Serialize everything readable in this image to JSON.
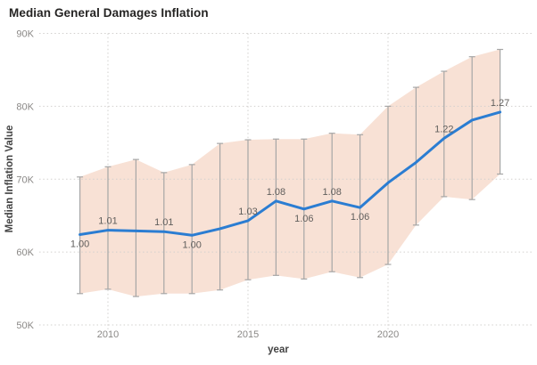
{
  "header": {
    "title": "Median General Damages Inflation"
  },
  "chart_data": {
    "type": "line",
    "title": "Median General Damages Inflation",
    "xlabel": "year",
    "ylabel": "Median Inflation Value",
    "y_unit": "K",
    "x": [
      2009,
      2010,
      2011,
      2012,
      2013,
      2014,
      2015,
      2016,
      2017,
      2018,
      2019,
      2020,
      2021,
      2022,
      2023,
      2024
    ],
    "series": [
      {
        "name": "Median Inflation Value",
        "values": [
          62.4,
          63.0,
          62.9,
          62.8,
          62.3,
          63.2,
          64.3,
          67.0,
          65.9,
          67.0,
          66.1,
          69.5,
          72.3,
          75.6,
          78.1,
          79.2
        ]
      }
    ],
    "band": {
      "upper": [
        70.3,
        71.7,
        72.7,
        70.9,
        72.0,
        74.9,
        75.4,
        75.5,
        75.5,
        76.3,
        76.1,
        80.0,
        82.6,
        84.8,
        86.8,
        87.8
      ],
      "lower": [
        54.3,
        54.9,
        53.9,
        54.3,
        54.3,
        54.8,
        56.2,
        56.8,
        56.3,
        57.3,
        56.5,
        58.3,
        63.7,
        67.6,
        67.2,
        70.7
      ]
    },
    "point_labels": [
      "1.00",
      "1.01",
      null,
      "1.01",
      "1.00",
      null,
      "1.03",
      "1.08",
      "1.06",
      "1.08",
      "1.06",
      null,
      null,
      "1.22",
      null,
      "1.27"
    ],
    "label_side": [
      "below",
      "above",
      null,
      "above",
      "below",
      null,
      "above",
      "above",
      "below",
      "above",
      "below",
      null,
      null,
      "above",
      null,
      "above"
    ],
    "x_ticks": [
      "2010",
      "2015",
      "2020"
    ],
    "x_tick_years": [
      2010,
      2015,
      2020
    ],
    "y_ticks": [
      "50K",
      "60K",
      "70K",
      "80K",
      "90K"
    ],
    "y_tick_values": [
      50,
      60,
      70,
      80,
      90
    ],
    "ylim": [
      50,
      90
    ],
    "grid": true,
    "legend": "none",
    "colors": {
      "line": "#2b7dd2",
      "band": "#f8e1d5",
      "error_bar": "#a6a6a6",
      "grid": "#d2d0ce",
      "title_text": "#252423",
      "axis_text": "#8a8886",
      "label_text": "#605e5c",
      "axis_title_text": "#444444",
      "background": "#ffffff"
    }
  }
}
